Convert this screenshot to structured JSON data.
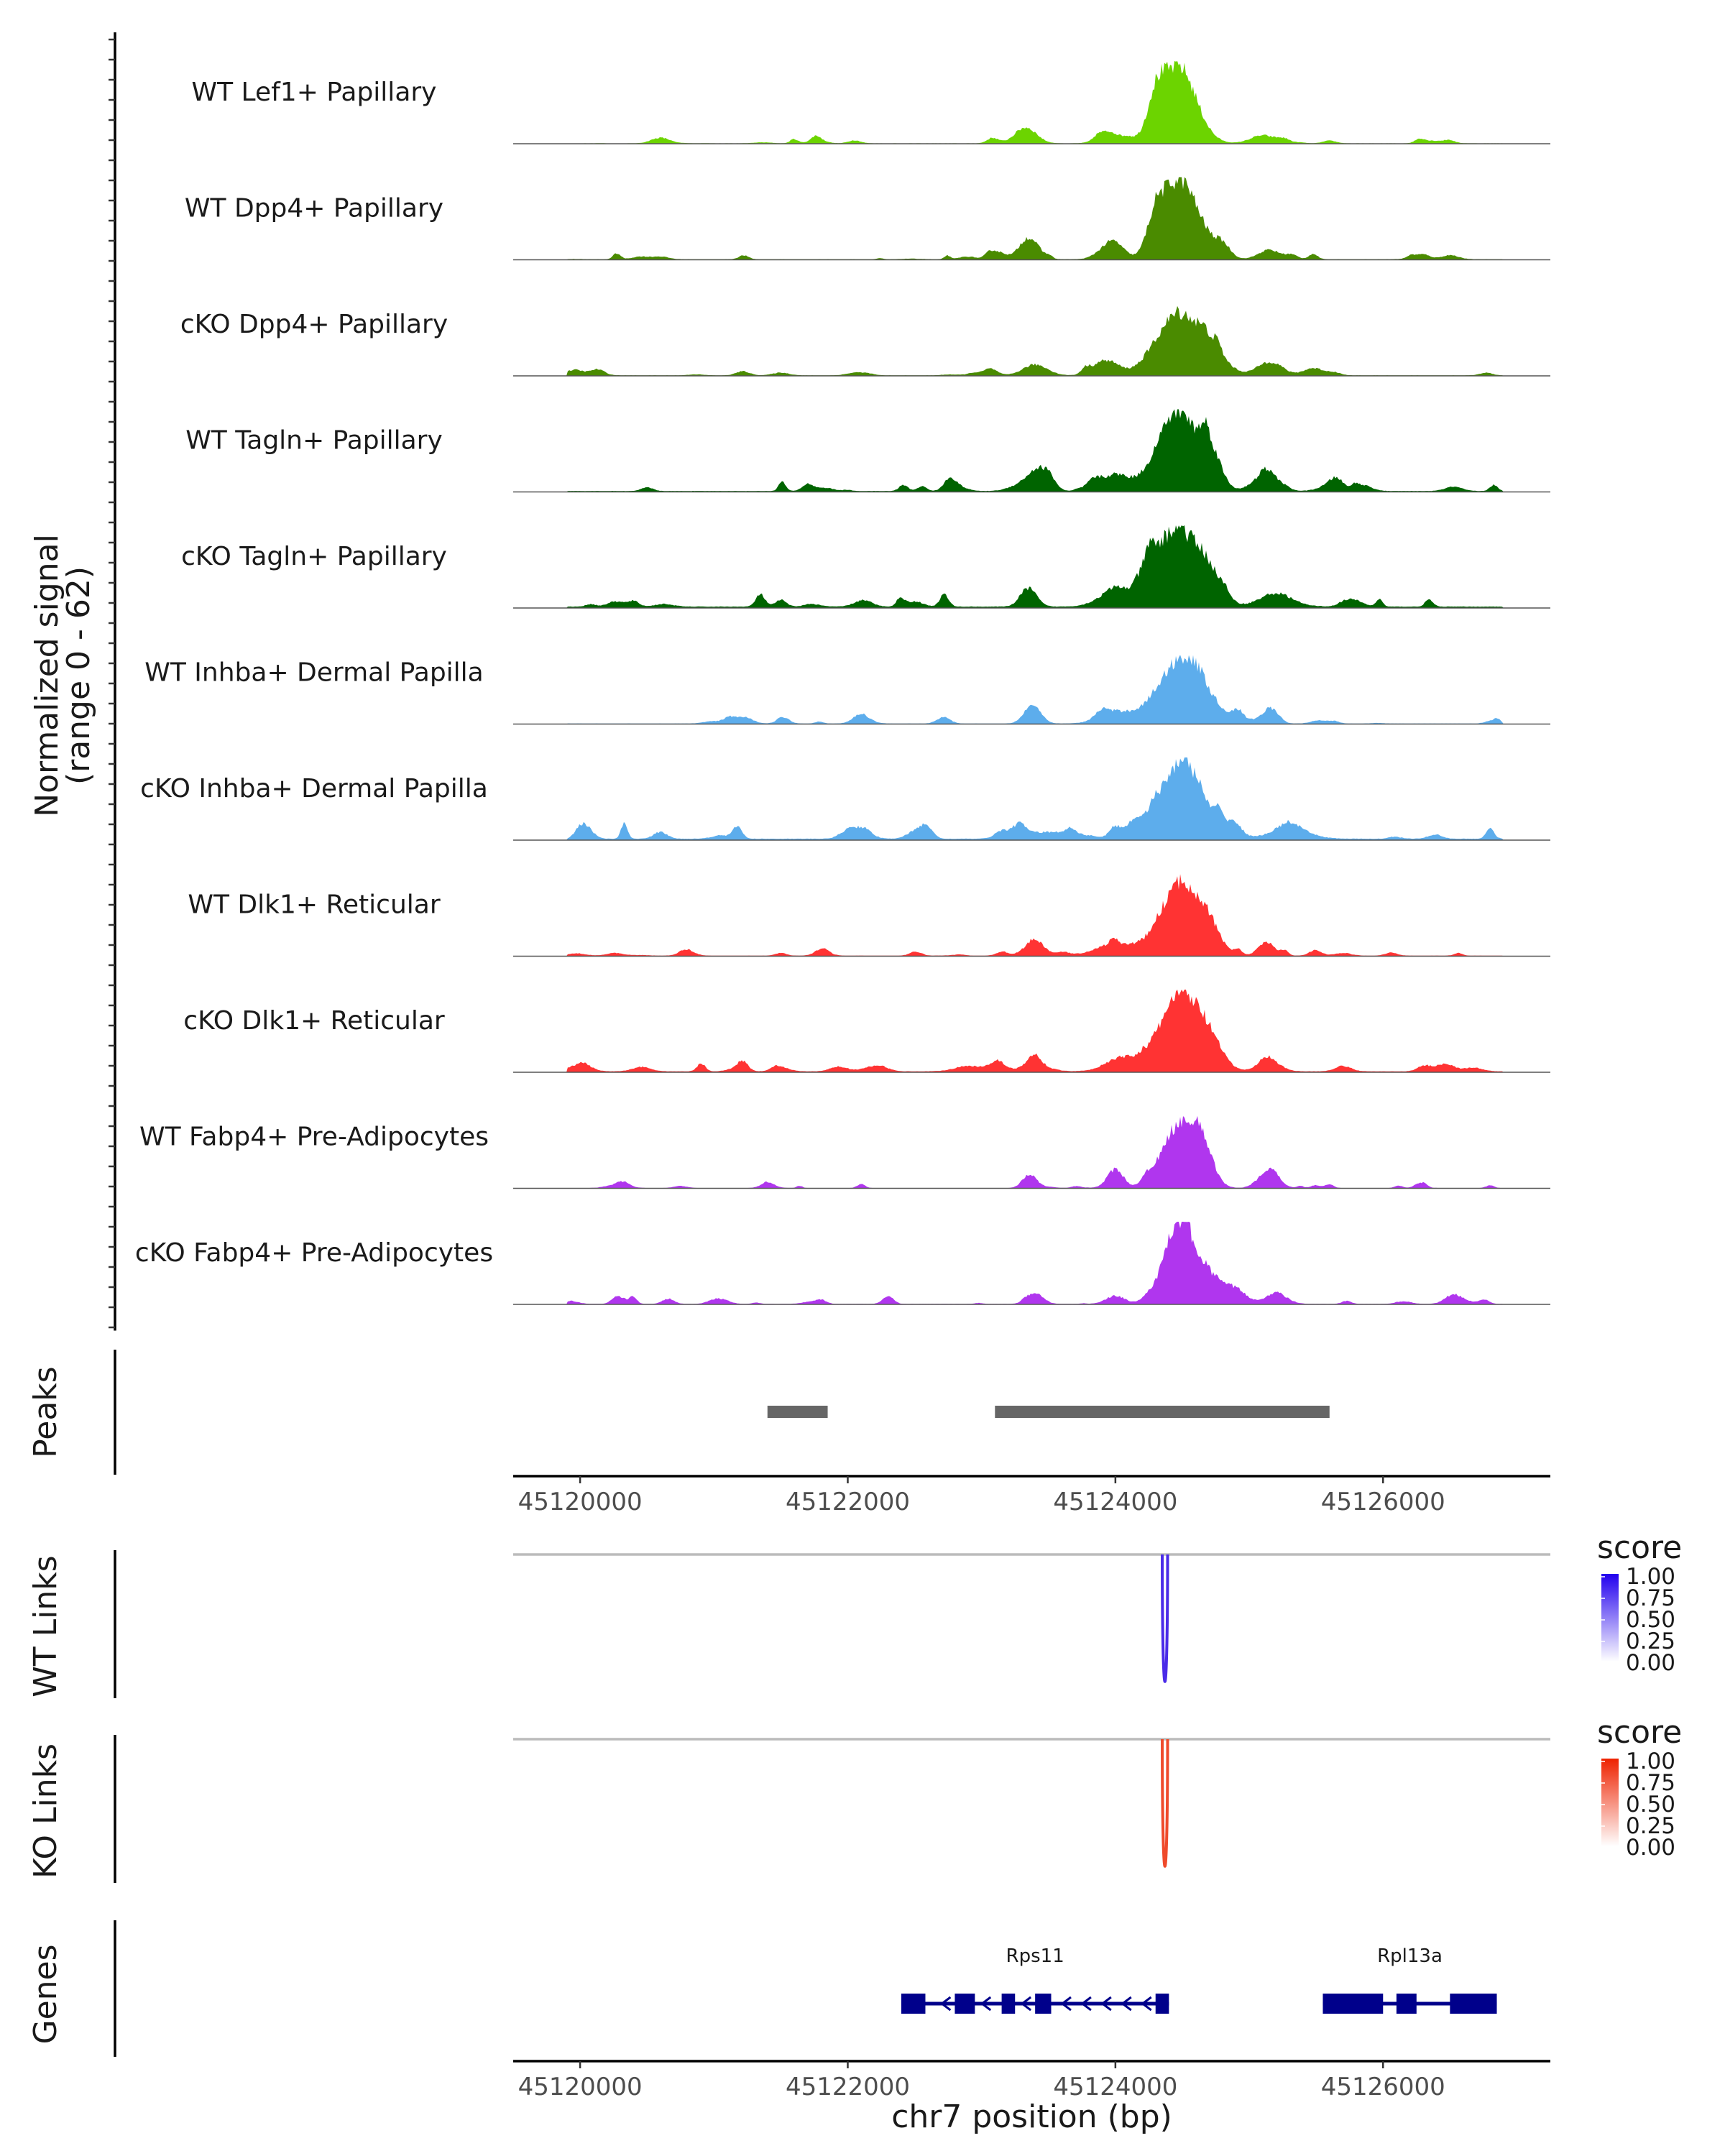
{
  "chart_data": {
    "type": "genome_tracks",
    "x_axis_label": "chr7 position (bp)",
    "x_range": [
      45119500,
      45127250
    ],
    "x_ticks": [
      {
        "value": 45120000,
        "label": "45120000"
      },
      {
        "value": 45122000,
        "label": "45122000"
      },
      {
        "value": 45124000,
        "label": "45124000"
      },
      {
        "value": 45126000,
        "label": "45126000"
      }
    ],
    "coverage": {
      "y_label_line1": "Normalized signal",
      "y_label_line2": "(range 0 - 62)",
      "y_range": [
        0,
        62
      ],
      "tracks": [
        {
          "name": "WT Lef1+ Papillary",
          "color": "#6CD400",
          "noise": 0.8,
          "peaks": [
            [
              45124470,
              130,
              58
            ],
            [
              45124300,
              60,
              22
            ],
            [
              45123330,
              80,
              12
            ],
            [
              45123080,
              40,
              4
            ],
            [
              45123950,
              80,
              9
            ],
            [
              45125100,
              90,
              6
            ],
            [
              45125600,
              50,
              2
            ]
          ]
        },
        {
          "name": "WT Dpp4+ Papillary",
          "color": "#4A8B00",
          "noise": 1.2,
          "peaks": [
            [
              45124480,
              130,
              60
            ],
            [
              45124300,
              60,
              22
            ],
            [
              45123350,
              70,
              16
            ],
            [
              45123080,
              40,
              6
            ],
            [
              45123950,
              80,
              10
            ],
            [
              45125150,
              80,
              7
            ],
            [
              45124800,
              60,
              10
            ],
            [
              45120600,
              60,
              2
            ]
          ]
        },
        {
          "name": "cKO Dpp4+ Papillary",
          "color": "#4A8B00",
          "noise": 1.2,
          "peaks": [
            [
              45124450,
              160,
              42
            ],
            [
              45124700,
              120,
              16
            ],
            [
              45123400,
              90,
              8
            ],
            [
              45123950,
              80,
              10
            ],
            [
              45125150,
              90,
              10
            ],
            [
              45125500,
              70,
              4
            ],
            [
              45121500,
              60,
              2
            ]
          ]
        },
        {
          "name": "WT Tagln+ Papillary",
          "color": "#006400",
          "noise": 2.0,
          "peaks": [
            [
              45124450,
              150,
              55
            ],
            [
              45124700,
              80,
              28
            ],
            [
              45125120,
              60,
              16
            ],
            [
              45124000,
              100,
              12
            ],
            [
              45123350,
              100,
              8
            ],
            [
              45121700,
              40,
              5
            ],
            [
              45120500,
              40,
              3
            ],
            [
              45125600,
              80,
              4
            ]
          ]
        },
        {
          "name": "cKO Tagln+ Papillary",
          "color": "#006400",
          "noise": 3.0,
          "peaks": [
            [
              45124480,
              140,
              52
            ],
            [
              45124250,
              80,
              25
            ],
            [
              45124700,
              100,
              20
            ],
            [
              45123350,
              60,
              14
            ],
            [
              45124000,
              120,
              12
            ],
            [
              45125200,
              120,
              10
            ],
            [
              45120400,
              40,
              4
            ],
            [
              45121500,
              40,
              5
            ],
            [
              45122500,
              60,
              4
            ],
            [
              45125800,
              60,
              4
            ]
          ]
        },
        {
          "name": "WT Inhba+ Dermal Papilla",
          "color": "#5DADEC",
          "noise": 1.2,
          "peaks": [
            [
              45124500,
              180,
              48
            ],
            [
              45123380,
              60,
              14
            ],
            [
              45124000,
              120,
              8
            ],
            [
              45125150,
              50,
              10
            ],
            [
              45121500,
              40,
              2
            ],
            [
              45126800,
              40,
              2
            ]
          ]
        },
        {
          "name": "cKO Inhba+ Dermal Papilla",
          "color": "#5DADEC",
          "noise": 3.0,
          "peaks": [
            [
              45124500,
              150,
              60
            ],
            [
              45124150,
              80,
              12
            ],
            [
              45125300,
              140,
              8
            ],
            [
              45122000,
              60,
              6
            ],
            [
              45123500,
              160,
              5
            ],
            [
              45120000,
              40,
              6
            ],
            [
              45126800,
              30,
              8
            ],
            [
              45120600,
              50,
              5
            ]
          ]
        },
        {
          "name": "WT Dlk1+ Reticular",
          "color": "#FF3333",
          "noise": 1.2,
          "peaks": [
            [
              45124480,
              150,
              52
            ],
            [
              45124700,
              80,
              15
            ],
            [
              45125130,
              60,
              10
            ],
            [
              45124000,
              140,
              9
            ],
            [
              45123400,
              80,
              8
            ],
            [
              45121500,
              40,
              2
            ],
            [
              45125700,
              60,
              2
            ]
          ]
        },
        {
          "name": "cKO Dlk1+ Reticular",
          "color": "#FF3333",
          "noise": 2.0,
          "peaks": [
            [
              45124480,
              150,
              57
            ],
            [
              45124700,
              100,
              16
            ],
            [
              45124050,
              120,
              10
            ],
            [
              45125150,
              80,
              8
            ],
            [
              45123400,
              100,
              5
            ],
            [
              45120000,
              40,
              3
            ],
            [
              45121500,
              60,
              3
            ],
            [
              45122900,
              100,
              4
            ],
            [
              45125700,
              60,
              4
            ]
          ]
        },
        {
          "name": "WT Fabp4+ Pre-Adipocytes",
          "color": "#B036EE",
          "noise": 0.6,
          "peaks": [
            [
              45124480,
              120,
              48
            ],
            [
              45124650,
              80,
              25
            ],
            [
              45125150,
              70,
              14
            ],
            [
              45124000,
              60,
              14
            ],
            [
              45123350,
              50,
              8
            ],
            [
              45124250,
              50,
              7
            ],
            [
              45121400,
              40,
              3
            ],
            [
              45122100,
              30,
              3
            ],
            [
              45125600,
              30,
              3
            ],
            [
              45126300,
              30,
              2
            ],
            [
              45126800,
              30,
              2
            ]
          ]
        },
        {
          "name": "cKO Fabp4+ Pre-Adipocytes",
          "color": "#B036EE",
          "noise": 1.0,
          "peaks": [
            [
              45124480,
              110,
              62
            ],
            [
              45124700,
              100,
              18
            ],
            [
              45124900,
              80,
              10
            ],
            [
              45125200,
              80,
              8
            ],
            [
              45123400,
              60,
              8
            ],
            [
              45124000,
              70,
              6
            ],
            [
              45122300,
              40,
              6
            ],
            [
              45121000,
              50,
              3
            ],
            [
              45121800,
              40,
              3
            ],
            [
              45126500,
              60,
              3
            ],
            [
              45120300,
              50,
              2
            ]
          ]
        }
      ]
    },
    "peaks_track": {
      "label": "Peaks",
      "color": "#666666",
      "regions": [
        [
          45121400,
          45121850
        ],
        [
          45123100,
          45125600
        ]
      ]
    },
    "wt_links": {
      "label": "WT Links",
      "legend_title": "score",
      "legend_ticks": [
        "1.00",
        "0.75",
        "0.50",
        "0.25",
        "0.00"
      ],
      "color_low": "#FFFFFF",
      "color_high": "#2200EE",
      "links": [
        {
          "start": 45124350,
          "end": 45124390,
          "score": 0.85,
          "color": "#4A2BE8"
        }
      ]
    },
    "ko_links": {
      "label": "KO Links",
      "legend_title": "score",
      "legend_ticks": [
        "1.00",
        "0.75",
        "0.50",
        "0.25",
        "0.00"
      ],
      "color_low": "#FFFFFF",
      "color_high": "#EE2200",
      "links": [
        {
          "start": 45124350,
          "end": 45124390,
          "score": 0.85,
          "color": "#EF4A2B"
        }
      ]
    },
    "genes": {
      "label": "Genes",
      "color": "#00008B",
      "items": [
        {
          "name": "Rps11",
          "start": 45122400,
          "end": 45124400,
          "strand": "-",
          "exons": [
            [
              45122400,
              45122580
            ],
            [
              45122800,
              45122950
            ],
            [
              45123150,
              45123250
            ],
            [
              45123400,
              45123520
            ],
            [
              45124300,
              45124400
            ]
          ]
        },
        {
          "name": "Rpl13a",
          "start": 45125550,
          "end": 45126850,
          "strand": "+",
          "exons": [
            [
              45125550,
              45126000
            ],
            [
              45126100,
              45126250
            ],
            [
              45126500,
              45126850
            ]
          ]
        }
      ]
    }
  }
}
